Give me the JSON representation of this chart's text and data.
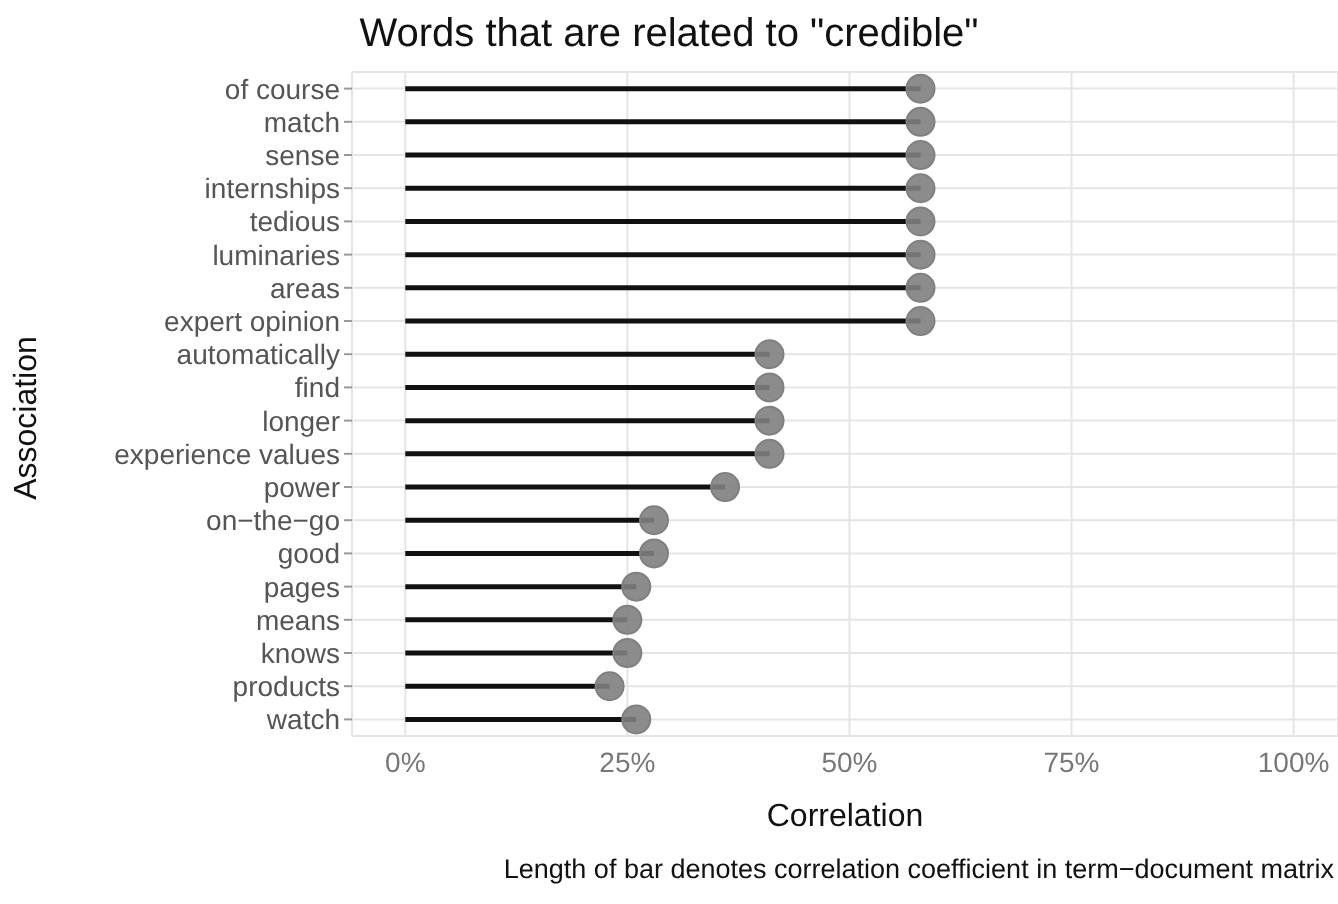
{
  "chart_data": {
    "type": "lollipop",
    "orientation": "horizontal",
    "title": "Words that are related to \"credible\"",
    "xlabel": "Correlation",
    "ylabel": "Association",
    "annotations": [
      "Length of bar denotes correlation coefficient in term−document matrix"
    ],
    "categories": [
      "of course",
      "match",
      "sense",
      "internships",
      "tedious",
      "luminaries",
      "areas",
      "expert opinion",
      "automatically",
      "find",
      "longer",
      "experience values",
      "power",
      "on−the−go",
      "good",
      "pages",
      "means",
      "knows",
      "products",
      "watch"
    ],
    "series": [
      {
        "color": "#808080",
        "values": [
          58,
          58,
          58,
          58,
          58,
          58,
          58,
          58,
          41,
          41,
          41,
          41,
          36,
          28,
          28,
          26,
          25,
          25,
          23,
          26
        ]
      }
    ],
    "xlim": [
      -6,
      105
    ],
    "xticks": [
      {
        "value": 0,
        "label": "0%"
      },
      {
        "value": 25,
        "label": "25%"
      },
      {
        "value": 50,
        "label": "50%"
      },
      {
        "value": 75,
        "label": "75%"
      },
      {
        "value": 100,
        "label": "100%"
      }
    ],
    "grid": true,
    "legend": false,
    "marker": "circle"
  }
}
